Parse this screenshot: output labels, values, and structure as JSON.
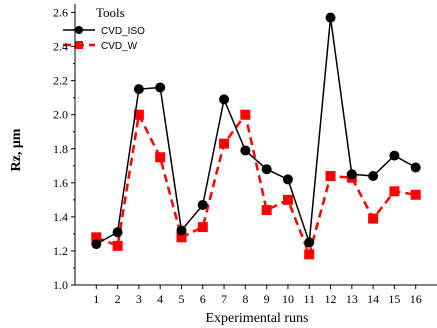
{
  "chart_data": {
    "type": "line",
    "xlabel": "Experimental runs",
    "ylabel": "Rz, μm",
    "x": [
      1,
      2,
      3,
      4,
      5,
      6,
      7,
      8,
      9,
      10,
      11,
      12,
      13,
      14,
      15,
      16
    ],
    "xlim": [
      0,
      17
    ],
    "ylim": [
      1.0,
      2.65
    ],
    "yticks": [
      "1.0",
      "1.2",
      "1.4",
      "1.6",
      "1.8",
      "2.0",
      "2.2",
      "2.4",
      "2.6"
    ],
    "legend_title": "Tools",
    "legend_position": "top-left",
    "grid": false,
    "series": [
      {
        "name": "CVD_ISO",
        "color": "#000000",
        "line_style": "solid",
        "marker": "circle",
        "values": [
          1.24,
          1.31,
          2.15,
          2.16,
          1.32,
          1.47,
          2.09,
          1.79,
          1.68,
          1.62,
          1.25,
          2.57,
          1.65,
          1.64,
          1.76,
          1.69
        ]
      },
      {
        "name": "CVD_W",
        "color": "#ff0000",
        "line_style": "dashed",
        "marker": "square",
        "values": [
          1.28,
          1.23,
          2.0,
          1.75,
          1.28,
          1.34,
          1.83,
          2.0,
          1.44,
          1.5,
          1.18,
          1.64,
          1.63,
          1.39,
          1.55,
          1.53
        ]
      }
    ]
  }
}
